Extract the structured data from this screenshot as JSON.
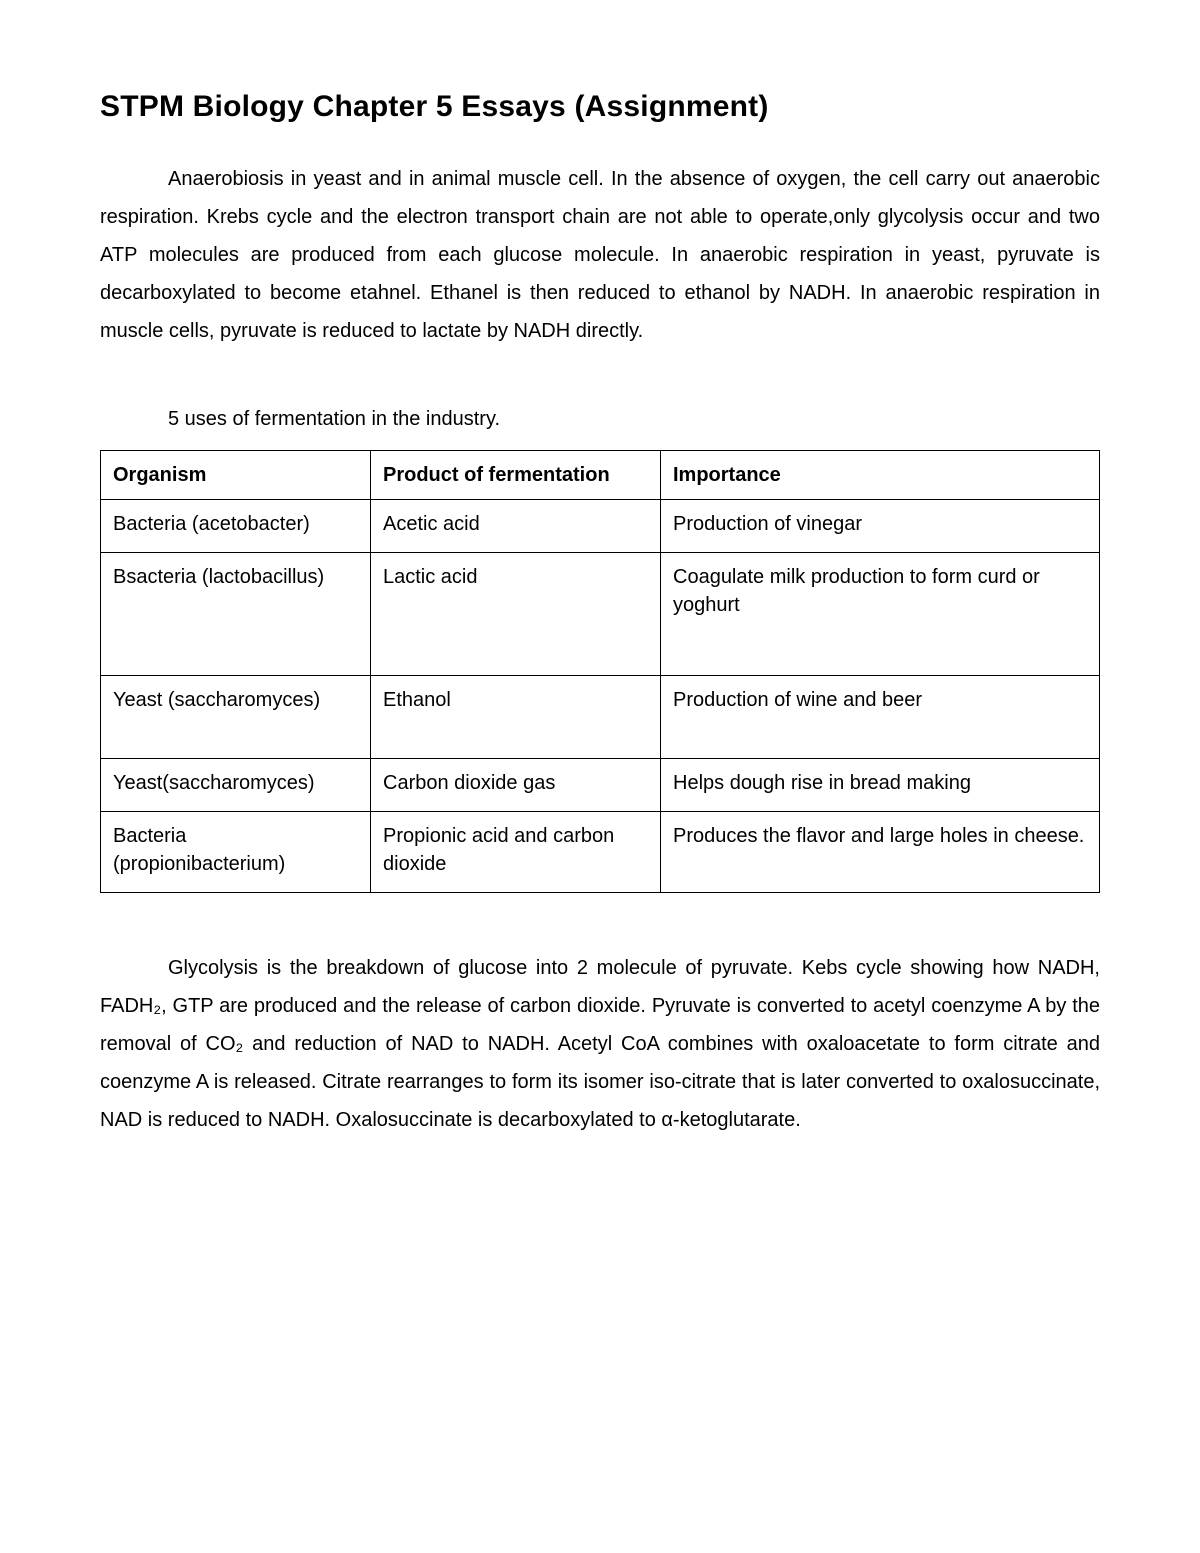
{
  "title": "STPM Biology Chapter 5 Essays (Assignment)",
  "paragraph1": "Anaerobiosis in yeast and in animal muscle cell. In the absence of oxygen, the cell carry out anaerobic respiration. Krebs cycle and the electron transport chain are not able to operate,only glycolysis occur and two ATP molecules are produced from each glucose molecule. In anaerobic respiration in yeast, pyruvate is decarboxylated to become etahnel. Ethanel is then reduced to ethanol by NADH. In anaerobic respiration in muscle cells, pyruvate is reduced to lactate by NADH directly.",
  "table_intro": "5 uses of fermentation in the industry.",
  "table": {
    "columns": [
      "Organism",
      "Product of fermentation",
      "Importance"
    ],
    "rows": [
      [
        "Bacteria (acetobacter)",
        "Acetic acid",
        "Production of vinegar"
      ],
      [
        "Bsacteria (lactobacillus)",
        "Lactic acid",
        "Coagulate milk production to form curd or yoghurt"
      ],
      [
        "Yeast (saccharomyces)",
        "Ethanol",
        "Production of wine and beer"
      ],
      [
        "Yeast(saccharomyces)",
        "Carbon dioxide gas",
        "Helps dough rise in bread making"
      ],
      [
        "Bacteria (propionibacterium)",
        "Propionic acid and carbon dioxide",
        "Produces the flavor and large holes in cheese."
      ]
    ],
    "row_classes": [
      "sm",
      "tall",
      "med",
      "sm",
      "sm"
    ]
  },
  "paragraph2": "Glycolysis is the breakdown of glucose into 2 molecule of pyruvate. Kebs cycle showing how NADH, FADH₂, GTP are produced and the release of carbon dioxide. Pyruvate is converted to acetyl coenzyme A by the removal of CO₂ and reduction of NAD to NADH. Acetyl CoA combines with oxaloacetate to form citrate and coenzyme A is released. Citrate rearranges to form its isomer iso-citrate that is later converted to oxalosuccinate, NAD is reduced to NADH. Oxalosuccinate is decarboxylated to α-ketoglutarate."
}
